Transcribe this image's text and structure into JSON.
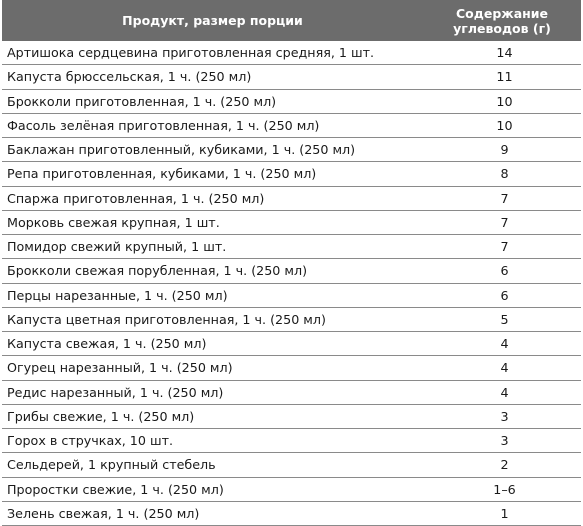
{
  "table": {
    "headers": {
      "name": "Продукт, размер порции",
      "value": "Содержание углеводов (г)"
    },
    "rows": [
      {
        "name": "Артишока сердцевина приготовленная средняя, 1 шт.",
        "value": "14"
      },
      {
        "name": "Капуста брюссельская, 1 ч. (250 мл)",
        "value": "11"
      },
      {
        "name": "Брокколи приготовленная, 1 ч. (250 мл)",
        "value": "10"
      },
      {
        "name": "Фасоль зелёная приготовленная, 1 ч. (250 мл)",
        "value": "10"
      },
      {
        "name": "Баклажан приготовленный, кубиками, 1 ч. (250 мл)",
        "value": "9"
      },
      {
        "name": "Репа приготовленная, кубиками, 1 ч. (250 мл)",
        "value": "8"
      },
      {
        "name": "Спаржа приготовленная, 1 ч. (250 мл)",
        "value": "7"
      },
      {
        "name": "Морковь свежая крупная, 1 шт.",
        "value": "7"
      },
      {
        "name": "Помидор свежий крупный, 1 шт.",
        "value": "7"
      },
      {
        "name": "Брокколи свежая порубленная, 1 ч. (250 мл)",
        "value": "6"
      },
      {
        "name": "Перцы нарезанные, 1 ч. (250 мл)",
        "value": "6"
      },
      {
        "name": "Капуста цветная приготовленная, 1 ч. (250 мл)",
        "value": "5"
      },
      {
        "name": "Капуста свежая, 1 ч. (250 мл)",
        "value": "4"
      },
      {
        "name": "Огурец нарезанный, 1 ч. (250 мл)",
        "value": "4"
      },
      {
        "name": "Редис нарезанный, 1 ч. (250 мл)",
        "value": "4"
      },
      {
        "name": "Грибы свежие, 1 ч. (250 мл)",
        "value": "3"
      },
      {
        "name": "Горох в стручках, 10 шт.",
        "value": "3"
      },
      {
        "name": "Сельдерей, 1 крупный стебель",
        "value": "2"
      },
      {
        "name": "Проростки свежие, 1 ч. (250 мл)",
        "value": "1–6"
      },
      {
        "name": "Зелень свежая, 1 ч. (250 мл)",
        "value": "1"
      }
    ]
  }
}
